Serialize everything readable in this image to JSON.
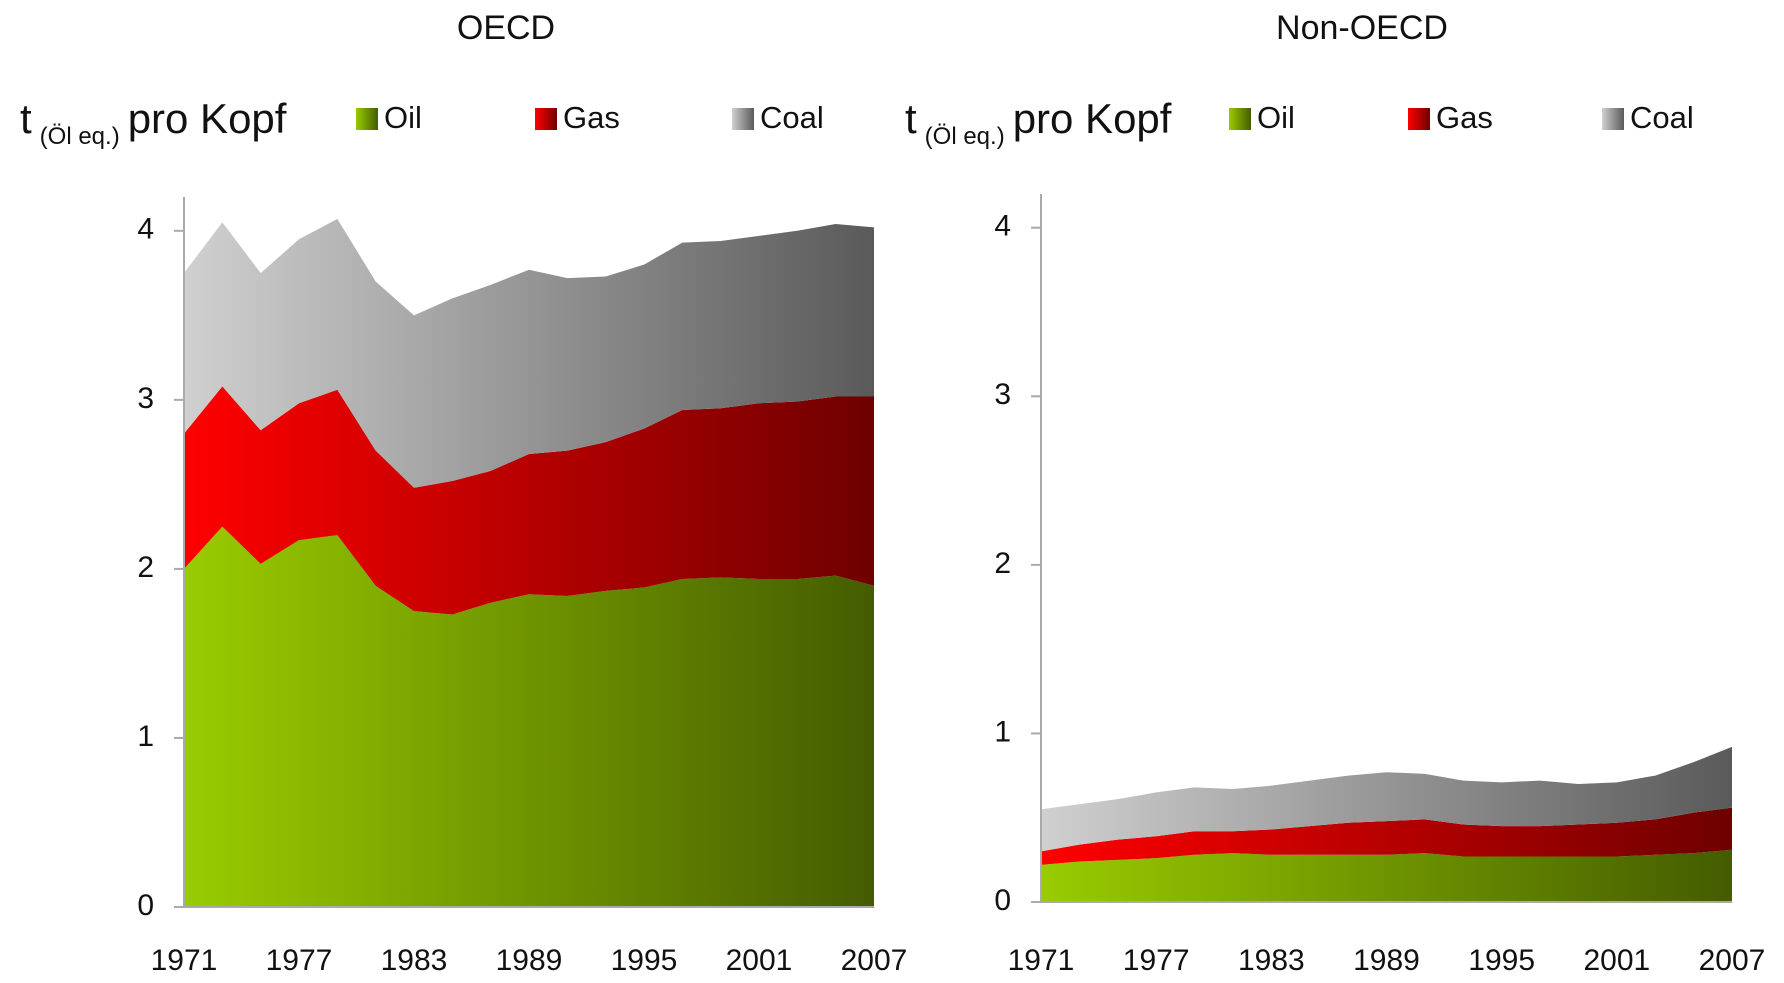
{
  "chart_data": [
    {
      "type": "area",
      "title": "OECD",
      "y_label": [
        "t",
        "(Öl eq.)",
        "pro Kopf"
      ],
      "x": [
        1971,
        1973,
        1975,
        1977,
        1979,
        1981,
        1983,
        1985,
        1987,
        1989,
        1991,
        1993,
        1995,
        1997,
        1999,
        2001,
        2003,
        2005,
        2007
      ],
      "xlim": [
        1971,
        2007
      ],
      "xticks": [
        1971,
        1977,
        1983,
        1989,
        1995,
        2001,
        2007
      ],
      "ylim": [
        0,
        4.2
      ],
      "yticks": [
        0,
        1,
        2,
        3,
        4
      ],
      "stacked": true,
      "series": [
        {
          "name": "Oil",
          "color": [
            "#99cc00",
            "#445c00"
          ],
          "values": [
            2.0,
            2.25,
            2.03,
            2.17,
            2.2,
            1.9,
            1.75,
            1.73,
            1.8,
            1.85,
            1.84,
            1.87,
            1.89,
            1.94,
            1.95,
            1.94,
            1.94,
            1.96,
            1.9
          ]
        },
        {
          "name": "Gas",
          "color": [
            "#ff0000",
            "#6e0000"
          ],
          "values": [
            0.8,
            0.83,
            0.79,
            0.81,
            0.86,
            0.8,
            0.73,
            0.79,
            0.78,
            0.83,
            0.86,
            0.88,
            0.94,
            1.0,
            1.0,
            1.04,
            1.05,
            1.06,
            1.12
          ]
        },
        {
          "name": "Coal",
          "color": [
            "#d0d0d0",
            "#5a5a5a"
          ],
          "values": [
            0.95,
            0.97,
            0.93,
            0.97,
            1.01,
            1.0,
            1.02,
            1.08,
            1.1,
            1.09,
            1.02,
            0.98,
            0.97,
            0.99,
            0.99,
            0.99,
            1.01,
            1.02,
            1.0
          ]
        }
      ]
    },
    {
      "type": "area",
      "title": "Non-OECD",
      "y_label": [
        "t",
        "(Öl eq.)",
        "pro Kopf"
      ],
      "x": [
        1971,
        1973,
        1975,
        1977,
        1979,
        1981,
        1983,
        1985,
        1987,
        1989,
        1991,
        1993,
        1995,
        1997,
        1999,
        2001,
        2003,
        2005,
        2007
      ],
      "xlim": [
        1971,
        2007
      ],
      "xticks": [
        1971,
        1977,
        1983,
        1989,
        1995,
        2001,
        2007
      ],
      "ylim": [
        0,
        4.2
      ],
      "yticks": [
        0,
        1,
        2,
        3,
        4
      ],
      "stacked": true,
      "series": [
        {
          "name": "Oil",
          "color": [
            "#99cc00",
            "#445c00"
          ],
          "values": [
            0.22,
            0.24,
            0.25,
            0.26,
            0.28,
            0.29,
            0.28,
            0.28,
            0.28,
            0.28,
            0.29,
            0.27,
            0.27,
            0.27,
            0.27,
            0.27,
            0.28,
            0.29,
            0.31
          ]
        },
        {
          "name": "Gas",
          "color": [
            "#ff0000",
            "#6e0000"
          ],
          "values": [
            0.08,
            0.1,
            0.12,
            0.13,
            0.14,
            0.13,
            0.15,
            0.17,
            0.19,
            0.2,
            0.2,
            0.19,
            0.18,
            0.18,
            0.19,
            0.2,
            0.21,
            0.24,
            0.25
          ]
        },
        {
          "name": "Coal",
          "color": [
            "#d0d0d0",
            "#5a5a5a"
          ],
          "values": [
            0.25,
            0.24,
            0.24,
            0.26,
            0.26,
            0.25,
            0.26,
            0.27,
            0.28,
            0.29,
            0.27,
            0.26,
            0.26,
            0.27,
            0.24,
            0.24,
            0.26,
            0.3,
            0.36
          ]
        }
      ]
    }
  ]
}
